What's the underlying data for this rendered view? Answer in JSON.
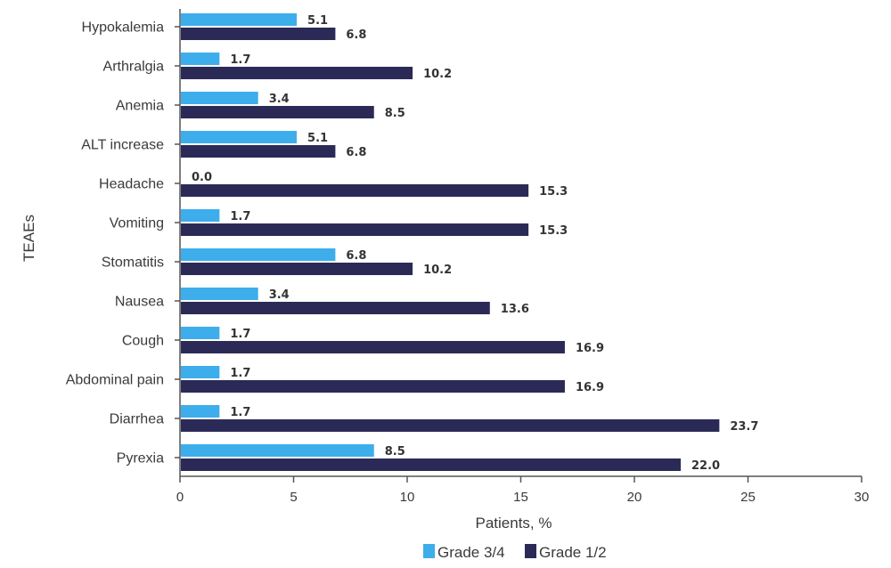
{
  "chart_data": {
    "type": "bar",
    "orientation": "horizontal",
    "title": "",
    "xlabel": "Patients, %",
    "ylabel": "TEAEs",
    "xlim": [
      0,
      30
    ],
    "xticks": [
      0,
      5,
      10,
      15,
      20,
      25,
      30
    ],
    "grid": false,
    "legend_position": "bottom",
    "categories": [
      "Hypokalemia",
      "Arthralgia",
      "Anemia",
      "ALT increase",
      "Headache",
      "Vomiting",
      "Stomatitis",
      "Nausea",
      "Cough",
      "Abdominal pain",
      "Diarrhea",
      "Pyrexia"
    ],
    "series": [
      {
        "name": "Grade 3/4",
        "color": "#3daeeb",
        "values": [
          5.1,
          1.7,
          3.4,
          5.1,
          0.0,
          1.7,
          6.8,
          3.4,
          1.7,
          1.7,
          1.7,
          8.5
        ],
        "labels": [
          "5.1",
          "1.7",
          "3.4",
          "5.1",
          "0.0",
          "1.7",
          "6.8",
          "3.4",
          "1.7",
          "1.7",
          "1.7",
          "8.5"
        ]
      },
      {
        "name": "Grade 1/2",
        "color": "#2b2a57",
        "values": [
          6.8,
          10.2,
          8.5,
          6.8,
          15.3,
          15.3,
          10.2,
          13.6,
          16.9,
          16.9,
          23.7,
          22.0
        ],
        "labels": [
          "6.8",
          "10.2",
          "8.5",
          "6.8",
          "15.3",
          "15.3",
          "10.2",
          "13.6",
          "16.9",
          "16.9",
          "23.7",
          "22.0"
        ]
      }
    ]
  }
}
